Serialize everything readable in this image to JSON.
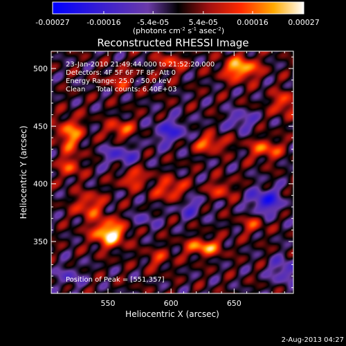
{
  "chart_data": {
    "type": "heatmap",
    "title": "Reconstructed RHESSI Image",
    "xlabel": "Heliocentric X (arcsec)",
    "ylabel": "Heliocentric Y (arcsec)",
    "xlim": [
      505,
      697
    ],
    "ylim": [
      305,
      515
    ],
    "x_ticks": [
      550,
      600,
      650
    ],
    "y_ticks": [
      350,
      400,
      450,
      500
    ],
    "colorbar": {
      "min": -0.00027,
      "max": 0.00027,
      "tick_values": [
        -0.00027,
        -0.00016,
        -5.4e-05,
        5.4e-05,
        0.00016,
        0.00027
      ],
      "tick_labels": [
        "-0.00027",
        "-0.00016",
        "-5.4e-05",
        "5.4e-05",
        "0.00016",
        "0.00027"
      ],
      "unit_label": "(photons cm",
      "unit_exp1": "-2",
      "unit_mid": " s",
      "unit_exp2": "-1",
      "unit_mid2": " asec",
      "unit_exp3": "-2",
      "unit_end": ")"
    },
    "annotations": [
      "23-Jan-2010 21:49:44.000 to 21:52:20.000",
      "Detectors: 4F 5F 6F 7F 8F, Att 0",
      "Energy Range: 25.0 - 50.0 keV",
      "Clean     Total counts: 6.40E+03"
    ],
    "peak_label": "Position of Peak = [551,357]",
    "peak": [
      551,
      357
    ],
    "sources": [
      {
        "x": 551,
        "y": 357,
        "amp": 1.0,
        "sx": 9,
        "sy": 8
      },
      {
        "x": 626,
        "y": 345,
        "amp": 0.75,
        "sx": 10,
        "sy": 5
      },
      {
        "x": 535,
        "y": 381,
        "amp": 0.55,
        "sx": 8,
        "sy": 8
      },
      {
        "x": 655,
        "y": 500,
        "amp": 0.85,
        "sx": 10,
        "sy": 7
      },
      {
        "x": 520,
        "y": 443,
        "amp": 0.7,
        "sx": 7,
        "sy": 10
      },
      {
        "x": 560,
        "y": 447,
        "amp": 0.55,
        "sx": 8,
        "sy": 6
      },
      {
        "x": 630,
        "y": 435,
        "amp": 0.6,
        "sx": 10,
        "sy": 5
      },
      {
        "x": 675,
        "y": 430,
        "amp": 0.6,
        "sx": 9,
        "sy": 6
      },
      {
        "x": 600,
        "y": 395,
        "amp": 0.55,
        "sx": 9,
        "sy": 7
      },
      {
        "x": 570,
        "y": 405,
        "amp": 0.5,
        "sx": 8,
        "sy": 6
      },
      {
        "x": 640,
        "y": 395,
        "amp": 0.45,
        "sx": 7,
        "sy": 6
      },
      {
        "x": 520,
        "y": 415,
        "amp": 0.5,
        "sx": 6,
        "sy": 7
      },
      {
        "x": 690,
        "y": 470,
        "amp": 0.55,
        "sx": 7,
        "sy": 7
      },
      {
        "x": 600,
        "y": 505,
        "amp": 0.45,
        "sx": 8,
        "sy": 6
      },
      {
        "x": 560,
        "y": 490,
        "amp": 0.4,
        "sx": 8,
        "sy": 6
      },
      {
        "x": 665,
        "y": 365,
        "amp": 0.4,
        "sx": 7,
        "sy": 6
      },
      {
        "x": 590,
        "y": 335,
        "amp": 0.35,
        "sx": 8,
        "sy": 6
      },
      {
        "x": 600,
        "y": 445,
        "amp": -0.55,
        "sx": 10,
        "sy": 8
      },
      {
        "x": 560,
        "y": 425,
        "amp": -0.45,
        "sx": 10,
        "sy": 7
      },
      {
        "x": 675,
        "y": 385,
        "amp": -0.7,
        "sx": 9,
        "sy": 8
      },
      {
        "x": 655,
        "y": 455,
        "amp": -0.45,
        "sx": 8,
        "sy": 6
      },
      {
        "x": 615,
        "y": 380,
        "amp": -0.4,
        "sx": 8,
        "sy": 7
      },
      {
        "x": 690,
        "y": 325,
        "amp": -0.45,
        "sx": 8,
        "sy": 8
      },
      {
        "x": 520,
        "y": 320,
        "amp": -0.35,
        "sx": 7,
        "sy": 7
      },
      {
        "x": 580,
        "y": 370,
        "amp": -0.3,
        "sx": 7,
        "sy": 6
      }
    ]
  },
  "footer_date": "2-Aug-2013 04:27"
}
